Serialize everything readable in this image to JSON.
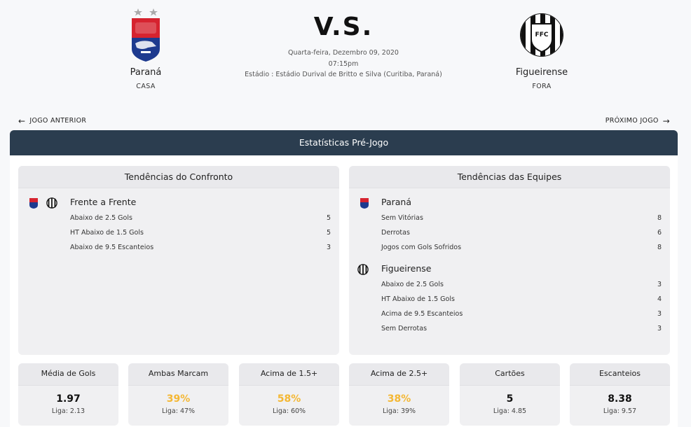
{
  "match": {
    "vs": "V.S.",
    "date": "Quarta-feira, Dezembro 09, 2020",
    "time": "07:15pm",
    "stadium": "Estádio : Estádio Durival de Britto e Silva (Curitiba, Paraná)"
  },
  "home": {
    "name": "Paraná",
    "role": "CASA",
    "crest": "parana-crest"
  },
  "away": {
    "name": "Figueirense",
    "role": "FORA",
    "crest": "figueirense-crest"
  },
  "nav": {
    "prev": "JOGO ANTERIOR",
    "next": "PRÓXIMO JOGO"
  },
  "panel": {
    "title": "Estatísticas Pré-Jogo"
  },
  "h2h": {
    "title": "Tendências do Confronto",
    "group_title": "Frente a Frente",
    "rows": [
      {
        "label": "Abaixo de 2.5 Gols",
        "value": "5"
      },
      {
        "label": "HT Abaixo de 1.5 Gols",
        "value": "5"
      },
      {
        "label": "Abaixo de 9.5 Escanteios",
        "value": "3"
      }
    ]
  },
  "teams_trends": {
    "title": "Tendências das Equipes",
    "home": {
      "name": "Paraná",
      "rows": [
        {
          "label": "Sem Vitórias",
          "value": "8"
        },
        {
          "label": "Derrotas",
          "value": "6"
        },
        {
          "label": "Jogos com Gols Sofridos",
          "value": "8"
        }
      ]
    },
    "away": {
      "name": "Figueirense",
      "rows": [
        {
          "label": "Abaixo de 2.5 Gols",
          "value": "3"
        },
        {
          "label": "HT Abaixo de 1.5 Gols",
          "value": "4"
        },
        {
          "label": "Acima de 9.5 Escanteios",
          "value": "3"
        },
        {
          "label": "Sem Derrotas",
          "value": "3"
        }
      ]
    }
  },
  "stats": [
    {
      "title": "Média de Gols",
      "value": "1.97",
      "league": "Liga: 2.13",
      "highlight": false
    },
    {
      "title": "Ambas Marcam",
      "value": "39%",
      "league": "Liga: 47%",
      "highlight": true
    },
    {
      "title": "Acima de 1.5+",
      "value": "58%",
      "league": "Liga: 60%",
      "highlight": true
    },
    {
      "title": "Acima de 2.5+",
      "value": "38%",
      "league": "Liga: 39%",
      "highlight": true
    },
    {
      "title": "Cartões",
      "value": "5",
      "league": "Liga: 4.85",
      "highlight": false
    },
    {
      "title": "Escanteios",
      "value": "8.38",
      "league": "Liga: 9.57",
      "highlight": false
    }
  ],
  "colors": {
    "header": "#2b3d4f",
    "highlight": "#f4b733",
    "parana_red": "#d6232f",
    "parana_blue": "#1d3a8f"
  }
}
